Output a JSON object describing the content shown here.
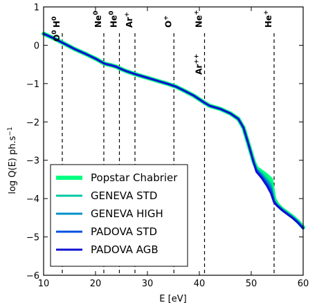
{
  "chart_data": {
    "type": "line",
    "xlabel": "E [eV]",
    "ylabel_main": "log Q(E) ph.s",
    "ylabel_sup": "−1",
    "xlim": [
      10,
      60
    ],
    "ylim": [
      -6,
      1
    ],
    "xticks": [
      {
        "value": 10,
        "label": "10"
      },
      {
        "value": 20,
        "label": "20"
      },
      {
        "value": 30,
        "label": "30"
      },
      {
        "value": 40,
        "label": "40"
      },
      {
        "value": 50,
        "label": "50"
      },
      {
        "value": 60,
        "label": "60"
      }
    ],
    "yticks": [
      {
        "value": 1,
        "label": "1"
      },
      {
        "value": 0,
        "label": "0"
      },
      {
        "value": -1,
        "label": "−1"
      },
      {
        "value": -2,
        "label": "−2"
      },
      {
        "value": -3,
        "label": "−3"
      },
      {
        "value": -4,
        "label": "−4"
      },
      {
        "value": -5,
        "label": "−5"
      },
      {
        "value": -6,
        "label": "−6"
      }
    ],
    "edges": [
      {
        "x": 13.6,
        "base": "H",
        "sup": "0"
      },
      {
        "x": 13.6,
        "base": "O",
        "sup": "0"
      },
      {
        "x": 21.6,
        "base": "Ne",
        "sup": "0"
      },
      {
        "x": 24.6,
        "base": "He",
        "sup": "0"
      },
      {
        "x": 27.6,
        "base": "Ar",
        "sup": "+"
      },
      {
        "x": 35.1,
        "base": "O",
        "sup": "+"
      },
      {
        "x": 41.0,
        "base": "Ne",
        "sup": "+"
      },
      {
        "x": 41.0,
        "base": "Ar",
        "sup": "++"
      },
      {
        "x": 54.4,
        "base": "He",
        "sup": "+"
      }
    ],
    "x": [
      10,
      12,
      14,
      16,
      18,
      20,
      21.6,
      22,
      23,
      24,
      24.6,
      26,
      28,
      30,
      32,
      34,
      35.5,
      37,
      39,
      41,
      42,
      44,
      46,
      47.5,
      48.5,
      49.5,
      50.5,
      51,
      52,
      53,
      53.8,
      54.4,
      55,
      56,
      57,
      58,
      59,
      60
    ],
    "series": [
      {
        "name": "Popstar Chabrier",
        "color": "#00ff80",
        "width": 6,
        "values": [
          0.3,
          0.18,
          0.04,
          -0.1,
          -0.22,
          -0.35,
          -0.47,
          -0.49,
          -0.52,
          -0.56,
          -0.6,
          -0.68,
          -0.77,
          -0.85,
          -0.93,
          -1.01,
          -1.08,
          -1.18,
          -1.32,
          -1.5,
          -1.58,
          -1.66,
          -1.78,
          -1.92,
          -2.15,
          -2.6,
          -3.05,
          -3.2,
          -3.3,
          -3.4,
          -3.5,
          -4.0,
          -4.15,
          -4.28,
          -4.38,
          -4.48,
          -4.6,
          -4.75
        ]
      },
      {
        "name": "GENEVA STD",
        "color": "#00c8a0",
        "width": 3,
        "values": [
          0.3,
          0.18,
          0.04,
          -0.1,
          -0.22,
          -0.35,
          -0.47,
          -0.49,
          -0.52,
          -0.56,
          -0.6,
          -0.68,
          -0.77,
          -0.85,
          -0.93,
          -1.01,
          -1.08,
          -1.18,
          -1.32,
          -1.5,
          -1.58,
          -1.66,
          -1.78,
          -1.92,
          -2.15,
          -2.6,
          -3.05,
          -3.22,
          -3.34,
          -3.48,
          -3.62,
          -4.04,
          -4.16,
          -4.28,
          -4.38,
          -4.48,
          -4.6,
          -4.75
        ]
      },
      {
        "name": "GENEVA HIGH",
        "color": "#0090c8",
        "width": 3,
        "values": [
          0.3,
          0.18,
          0.04,
          -0.1,
          -0.22,
          -0.35,
          -0.47,
          -0.49,
          -0.52,
          -0.56,
          -0.6,
          -0.68,
          -0.77,
          -0.85,
          -0.93,
          -1.01,
          -1.08,
          -1.18,
          -1.32,
          -1.5,
          -1.58,
          -1.66,
          -1.78,
          -1.92,
          -2.15,
          -2.6,
          -3.06,
          -3.24,
          -3.38,
          -3.54,
          -3.7,
          -4.06,
          -4.17,
          -4.29,
          -4.39,
          -4.49,
          -4.61,
          -4.76
        ]
      },
      {
        "name": "PADOVA STD",
        "color": "#0050e0",
        "width": 3,
        "values": [
          0.3,
          0.18,
          0.04,
          -0.1,
          -0.22,
          -0.35,
          -0.47,
          -0.49,
          -0.52,
          -0.56,
          -0.6,
          -0.68,
          -0.77,
          -0.85,
          -0.93,
          -1.01,
          -1.08,
          -1.18,
          -1.32,
          -1.5,
          -1.58,
          -1.66,
          -1.78,
          -1.92,
          -2.15,
          -2.6,
          -3.07,
          -3.27,
          -3.42,
          -3.6,
          -3.78,
          -4.08,
          -4.18,
          -4.3,
          -4.4,
          -4.5,
          -4.62,
          -4.77
        ]
      },
      {
        "name": "PADOVA AGB",
        "color": "#1010d0",
        "width": 3,
        "values": [
          0.3,
          0.18,
          0.04,
          -0.1,
          -0.22,
          -0.35,
          -0.47,
          -0.49,
          -0.52,
          -0.56,
          -0.6,
          -0.68,
          -0.77,
          -0.85,
          -0.93,
          -1.01,
          -1.08,
          -1.18,
          -1.32,
          -1.5,
          -1.58,
          -1.66,
          -1.78,
          -1.92,
          -2.15,
          -2.6,
          -3.08,
          -3.3,
          -3.46,
          -3.66,
          -3.86,
          -4.1,
          -4.19,
          -4.31,
          -4.41,
          -4.51,
          -4.63,
          -4.78
        ]
      }
    ],
    "legend_position": "lower-left",
    "grid": false
  }
}
